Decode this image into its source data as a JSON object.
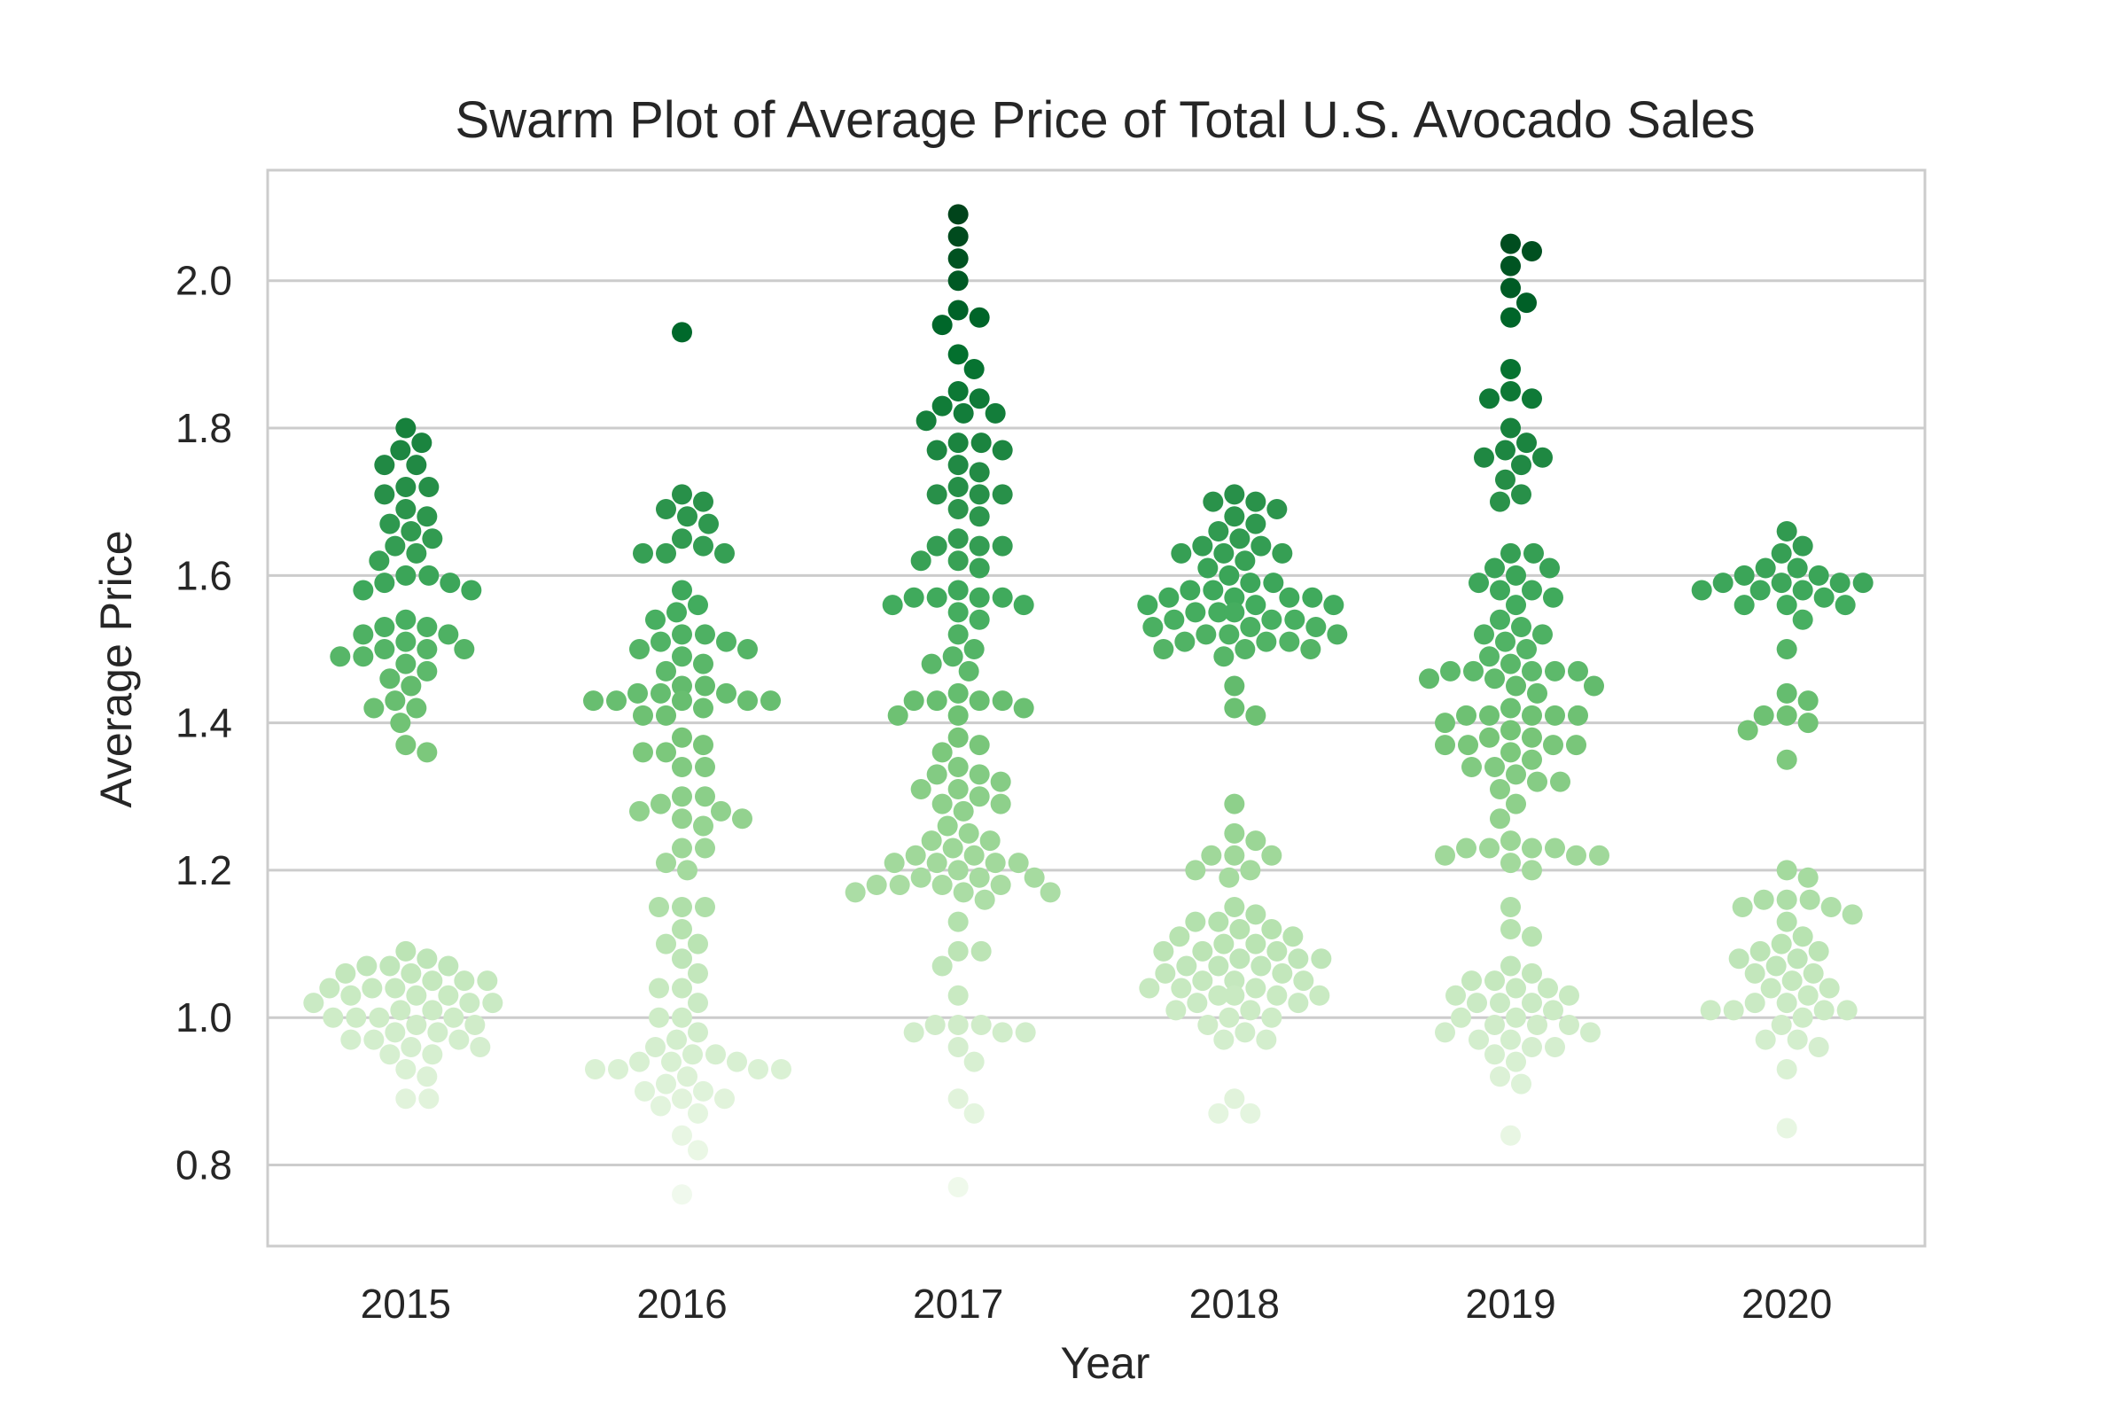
{
  "chart_data": {
    "type": "scatter",
    "subtype": "swarm",
    "title": "Swarm Plot of Average Price of Total U.S. Avocado Sales",
    "xlabel": "Year",
    "ylabel": "Average Price",
    "categories": [
      "2015",
      "2016",
      "2017",
      "2018",
      "2019",
      "2020"
    ],
    "ylim": [
      0.69,
      2.15
    ],
    "yticks": [
      "0.8",
      "1.0",
      "1.2",
      "1.4",
      "1.6",
      "1.8",
      "2.0"
    ],
    "grid": "horizontal",
    "legend": "none",
    "colormap": "Greens",
    "color_range": [
      0.76,
      2.09
    ],
    "series": [
      {
        "category": "2015",
        "values": [
          1.8,
          1.78,
          1.77,
          1.75,
          1.75,
          1.72,
          1.72,
          1.71,
          1.69,
          1.68,
          1.67,
          1.66,
          1.65,
          1.64,
          1.63,
          1.62,
          1.6,
          1.6,
          1.59,
          1.59,
          1.58,
          1.58,
          1.54,
          1.53,
          1.53,
          1.52,
          1.52,
          1.51,
          1.5,
          1.5,
          1.5,
          1.49,
          1.49,
          1.48,
          1.47,
          1.46,
          1.45,
          1.43,
          1.42,
          1.42,
          1.4,
          1.37,
          1.36,
          1.09,
          1.08,
          1.07,
          1.07,
          1.07,
          1.06,
          1.06,
          1.05,
          1.05,
          1.05,
          1.04,
          1.04,
          1.04,
          1.03,
          1.03,
          1.03,
          1.02,
          1.02,
          1.02,
          1.01,
          1.01,
          1.0,
          1.0,
          1.0,
          1.0,
          0.99,
          0.99,
          0.98,
          0.98,
          0.97,
          0.97,
          0.97,
          0.96,
          0.96,
          0.95,
          0.95,
          0.93,
          0.92,
          0.89,
          0.89
        ]
      },
      {
        "category": "2016",
        "values": [
          1.93,
          1.71,
          1.7,
          1.69,
          1.68,
          1.67,
          1.65,
          1.64,
          1.63,
          1.63,
          1.63,
          1.58,
          1.56,
          1.55,
          1.54,
          1.52,
          1.52,
          1.51,
          1.51,
          1.5,
          1.5,
          1.49,
          1.48,
          1.47,
          1.45,
          1.45,
          1.44,
          1.44,
          1.44,
          1.43,
          1.43,
          1.43,
          1.43,
          1.43,
          1.42,
          1.41,
          1.41,
          1.38,
          1.37,
          1.36,
          1.36,
          1.34,
          1.34,
          1.3,
          1.3,
          1.29,
          1.28,
          1.28,
          1.27,
          1.27,
          1.26,
          1.23,
          1.23,
          1.21,
          1.2,
          1.15,
          1.15,
          1.15,
          1.12,
          1.1,
          1.1,
          1.08,
          1.06,
          1.04,
          1.04,
          1.02,
          1.0,
          1.0,
          0.98,
          0.97,
          0.96,
          0.95,
          0.95,
          0.94,
          0.94,
          0.94,
          0.93,
          0.93,
          0.93,
          0.93,
          0.92,
          0.91,
          0.9,
          0.9,
          0.89,
          0.89,
          0.88,
          0.87,
          0.84,
          0.82,
          0.76
        ]
      },
      {
        "category": "2017",
        "values": [
          2.09,
          2.06,
          2.03,
          2.0,
          1.96,
          1.95,
          1.94,
          1.9,
          1.88,
          1.85,
          1.84,
          1.83,
          1.82,
          1.82,
          1.81,
          1.78,
          1.78,
          1.77,
          1.77,
          1.75,
          1.74,
          1.72,
          1.71,
          1.71,
          1.71,
          1.69,
          1.68,
          1.65,
          1.64,
          1.64,
          1.64,
          1.62,
          1.62,
          1.61,
          1.58,
          1.57,
          1.57,
          1.57,
          1.57,
          1.56,
          1.56,
          1.55,
          1.54,
          1.52,
          1.5,
          1.49,
          1.48,
          1.47,
          1.44,
          1.43,
          1.43,
          1.43,
          1.43,
          1.42,
          1.41,
          1.41,
          1.38,
          1.37,
          1.36,
          1.34,
          1.33,
          1.33,
          1.32,
          1.31,
          1.31,
          1.3,
          1.29,
          1.29,
          1.28,
          1.26,
          1.25,
          1.24,
          1.24,
          1.23,
          1.22,
          1.22,
          1.21,
          1.21,
          1.21,
          1.21,
          1.2,
          1.19,
          1.19,
          1.19,
          1.18,
          1.18,
          1.18,
          1.18,
          1.17,
          1.17,
          1.17,
          1.16,
          1.13,
          1.09,
          1.09,
          1.07,
          1.03,
          0.99,
          0.99,
          0.99,
          0.98,
          0.98,
          0.98,
          0.96,
          0.94,
          0.89,
          0.87,
          0.77
        ]
      },
      {
        "category": "2018",
        "values": [
          1.71,
          1.7,
          1.7,
          1.69,
          1.68,
          1.67,
          1.66,
          1.65,
          1.64,
          1.64,
          1.63,
          1.63,
          1.63,
          1.62,
          1.61,
          1.6,
          1.59,
          1.59,
          1.58,
          1.58,
          1.57,
          1.57,
          1.57,
          1.57,
          1.56,
          1.56,
          1.56,
          1.55,
          1.55,
          1.55,
          1.54,
          1.54,
          1.54,
          1.53,
          1.53,
          1.53,
          1.52,
          1.52,
          1.52,
          1.51,
          1.51,
          1.51,
          1.5,
          1.5,
          1.5,
          1.49,
          1.45,
          1.42,
          1.41,
          1.29,
          1.25,
          1.24,
          1.22,
          1.22,
          1.22,
          1.2,
          1.2,
          1.19,
          1.15,
          1.14,
          1.13,
          1.13,
          1.12,
          1.12,
          1.11,
          1.11,
          1.1,
          1.1,
          1.09,
          1.09,
          1.09,
          1.08,
          1.08,
          1.08,
          1.07,
          1.07,
          1.07,
          1.06,
          1.06,
          1.05,
          1.05,
          1.05,
          1.04,
          1.04,
          1.04,
          1.03,
          1.03,
          1.03,
          1.03,
          1.02,
          1.02,
          1.01,
          1.01,
          1.0,
          1.0,
          0.99,
          0.98,
          0.97,
          0.97,
          0.89,
          0.87,
          0.87
        ]
      },
      {
        "category": "2019",
        "values": [
          2.05,
          2.04,
          2.02,
          1.99,
          1.97,
          1.95,
          1.88,
          1.85,
          1.84,
          1.84,
          1.8,
          1.78,
          1.77,
          1.76,
          1.76,
          1.75,
          1.73,
          1.71,
          1.7,
          1.63,
          1.63,
          1.61,
          1.61,
          1.6,
          1.59,
          1.58,
          1.58,
          1.57,
          1.56,
          1.54,
          1.53,
          1.52,
          1.52,
          1.51,
          1.5,
          1.49,
          1.48,
          1.47,
          1.47,
          1.47,
          1.47,
          1.47,
          1.46,
          1.46,
          1.45,
          1.45,
          1.44,
          1.42,
          1.41,
          1.41,
          1.41,
          1.41,
          1.41,
          1.4,
          1.39,
          1.38,
          1.38,
          1.37,
          1.37,
          1.37,
          1.37,
          1.36,
          1.35,
          1.34,
          1.34,
          1.33,
          1.32,
          1.32,
          1.31,
          1.29,
          1.27,
          1.24,
          1.23,
          1.23,
          1.23,
          1.23,
          1.22,
          1.22,
          1.22,
          1.21,
          1.2,
          1.15,
          1.12,
          1.11,
          1.07,
          1.06,
          1.05,
          1.05,
          1.04,
          1.04,
          1.03,
          1.03,
          1.02,
          1.02,
          1.02,
          1.01,
          1.0,
          1.0,
          0.99,
          0.99,
          0.99,
          0.98,
          0.98,
          0.97,
          0.97,
          0.96,
          0.96,
          0.95,
          0.94,
          0.92,
          0.91,
          0.84
        ]
      },
      {
        "category": "2020",
        "values": [
          1.66,
          1.64,
          1.63,
          1.61,
          1.61,
          1.6,
          1.6,
          1.59,
          1.59,
          1.59,
          1.59,
          1.58,
          1.58,
          1.58,
          1.57,
          1.56,
          1.56,
          1.56,
          1.54,
          1.5,
          1.44,
          1.43,
          1.41,
          1.41,
          1.4,
          1.39,
          1.35,
          1.2,
          1.19,
          1.16,
          1.16,
          1.16,
          1.15,
          1.15,
          1.14,
          1.13,
          1.11,
          1.1,
          1.09,
          1.09,
          1.08,
          1.08,
          1.07,
          1.06,
          1.06,
          1.05,
          1.04,
          1.04,
          1.03,
          1.02,
          1.02,
          1.01,
          1.01,
          1.01,
          1.01,
          1.0,
          0.99,
          0.97,
          0.97,
          0.96,
          0.93,
          0.85
        ]
      }
    ]
  }
}
